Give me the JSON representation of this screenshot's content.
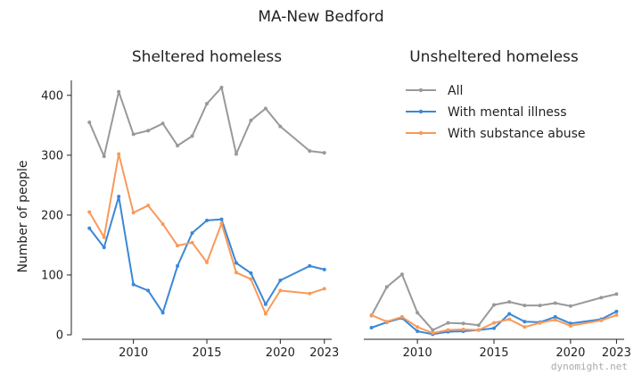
{
  "title": "MA-New Bedford",
  "watermark": "dynomight.net",
  "colors": {
    "all": "#999999",
    "mental": "#3a88d8",
    "substance": "#f79a5b"
  },
  "chart_data": [
    {
      "type": "line",
      "title": "Sheltered homeless",
      "ylabel": "Number of people",
      "xlim": [
        2006.5,
        2023.5
      ],
      "ylim": [
        0,
        425
      ],
      "xticks": [
        2010,
        2015,
        2020,
        2023
      ],
      "yticks": [
        0,
        100,
        200,
        300,
        400
      ],
      "x": [
        2007,
        2008,
        2009,
        2010,
        2011,
        2012,
        2013,
        2014,
        2015,
        2016,
        2017,
        2018,
        2019,
        2020,
        2022,
        2023
      ],
      "series": [
        {
          "name": "All",
          "color": "#999999",
          "values": [
            355,
            298,
            406,
            335,
            341,
            353,
            316,
            332,
            386,
            413,
            302,
            358,
            378,
            348,
            307,
            304
          ]
        },
        {
          "name": "With mental illness",
          "color": "#3a88d8",
          "values": [
            178,
            146,
            231,
            84,
            74,
            37,
            115,
            170,
            191,
            193,
            120,
            103,
            51,
            91,
            115,
            109
          ]
        },
        {
          "name": "With substance abuse",
          "color": "#f79a5b",
          "values": [
            205,
            163,
            302,
            204,
            216,
            185,
            149,
            154,
            121,
            186,
            104,
            93,
            35,
            74,
            69,
            77
          ]
        }
      ]
    },
    {
      "type": "line",
      "title": "Unsheltered homeless",
      "ylabel": "",
      "xlim": [
        2006.5,
        2023.5
      ],
      "ylim": [
        0,
        425
      ],
      "xticks": [
        2010,
        2015,
        2020,
        2023
      ],
      "yticks": [],
      "legend": "top-right",
      "x": [
        2007,
        2008,
        2009,
        2010,
        2011,
        2012,
        2013,
        2014,
        2015,
        2016,
        2017,
        2018,
        2019,
        2020,
        2022,
        2023
      ],
      "series": [
        {
          "name": "All",
          "color": "#999999",
          "values": [
            32,
            80,
            101,
            37,
            8,
            20,
            19,
            16,
            50,
            55,
            49,
            49,
            53,
            48,
            62,
            68
          ]
        },
        {
          "name": "With mental illness",
          "color": "#3a88d8",
          "values": [
            12,
            21,
            28,
            6,
            1,
            5,
            6,
            8,
            11,
            35,
            22,
            21,
            30,
            19,
            26,
            39
          ]
        },
        {
          "name": "With substance abuse",
          "color": "#f79a5b",
          "values": [
            33,
            22,
            30,
            13,
            3,
            8,
            9,
            8,
            20,
            26,
            13,
            20,
            25,
            15,
            24,
            33
          ]
        }
      ]
    }
  ]
}
